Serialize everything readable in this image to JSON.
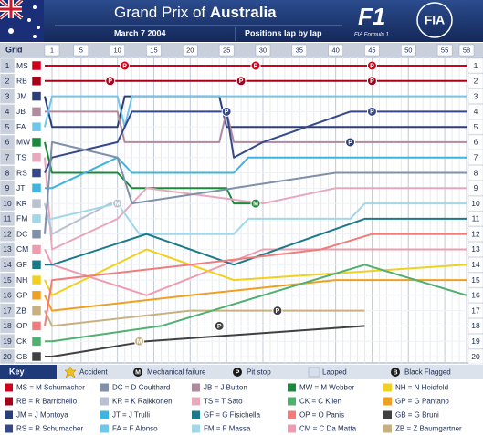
{
  "chart_data": {
    "type": "lap-chart",
    "title": "Grand Prix of",
    "title_emphasis": "Australia",
    "date": "March 7 2004",
    "subtitle": "Positions lap by lap",
    "logos": [
      "FIA Formula 1",
      "FIA"
    ],
    "x_label": "Grid",
    "xlim": [
      0,
      58
    ],
    "xticks": [
      1,
      5,
      10,
      15,
      20,
      25,
      30,
      35,
      40,
      45,
      50,
      55,
      58
    ],
    "ylim": [
      0.5,
      20.5
    ],
    "yticks": [
      1,
      2,
      3,
      4,
      5,
      6,
      7,
      8,
      9,
      10,
      11,
      12,
      13,
      14,
      15,
      16,
      17,
      18,
      19,
      20
    ],
    "series": [
      {
        "name": "MS",
        "color": "#d0021b",
        "x": [
          0,
          58
        ],
        "values": [
          1,
          1
        ]
      },
      {
        "name": "RB",
        "color": "#a80018",
        "x": [
          0,
          58
        ],
        "values": [
          2,
          2
        ]
      },
      {
        "name": "JM",
        "color": "#2a3f7a",
        "x": [
          0,
          1,
          10,
          11,
          24,
          25,
          58
        ],
        "values": [
          3,
          5,
          5,
          3,
          3,
          5,
          5
        ]
      },
      {
        "name": "JB",
        "color": "#b08a9e",
        "x": [
          0,
          1,
          10,
          11,
          24,
          25,
          26,
          58
        ],
        "values": [
          4,
          4,
          4,
          6,
          6,
          4,
          6,
          6
        ]
      },
      {
        "name": "FA",
        "color": "#6ec6ea",
        "x": [
          0,
          1,
          10,
          11,
          12,
          58
        ],
        "values": [
          5,
          3,
          3,
          5,
          3,
          3
        ]
      },
      {
        "name": "MW",
        "color": "#1a8a3a",
        "x": [
          0,
          1,
          10,
          12,
          25,
          26,
          29
        ],
        "values": [
          6,
          8,
          8,
          9,
          9,
          10,
          10
        ]
      },
      {
        "name": "TS",
        "color": "#e8a8bc",
        "x": [
          0,
          1,
          10,
          14,
          30,
          40,
          58
        ],
        "values": [
          7,
          13,
          11,
          9,
          10,
          9,
          9
        ]
      },
      {
        "name": "RS",
        "color": "#34488a",
        "x": [
          0,
          1,
          10,
          12,
          25,
          26,
          30,
          42,
          58
        ],
        "values": [
          8,
          7,
          6,
          4,
          4,
          7,
          6,
          4,
          4
        ]
      },
      {
        "name": "JT",
        "color": "#3fb4de",
        "x": [
          0,
          1,
          10,
          12,
          26,
          28,
          58
        ],
        "values": [
          9,
          9,
          7,
          8,
          8,
          7,
          7
        ]
      },
      {
        "name": "KR",
        "color": "#b8c0d2",
        "x": [
          0,
          1,
          9,
          10
        ],
        "values": [
          10,
          12,
          10,
          10
        ]
      },
      {
        "name": "FM",
        "color": "#a0d8ea",
        "x": [
          0,
          1,
          10,
          13,
          26,
          28,
          42,
          44,
          58
        ],
        "values": [
          11,
          11,
          10,
          12,
          12,
          11,
          11,
          10,
          10
        ]
      },
      {
        "name": "DC",
        "color": "#8090aa",
        "x": [
          0,
          1,
          10,
          12,
          26,
          40,
          58
        ],
        "values": [
          12,
          6,
          7,
          10,
          9,
          8,
          8
        ]
      },
      {
        "name": "CM",
        "color": "#f09cb0",
        "x": [
          0,
          1,
          14,
          30,
          58
        ],
        "values": [
          13,
          14,
          16,
          13,
          13
        ]
      },
      {
        "name": "GF",
        "color": "#1a7a8a",
        "x": [
          0,
          1,
          14,
          26,
          44,
          58
        ],
        "values": [
          14,
          14,
          12,
          14,
          11,
          11
        ]
      },
      {
        "name": "NH",
        "color": "#f0d020",
        "x": [
          0,
          1,
          14,
          26,
          58
        ],
        "values": [
          15,
          16,
          13,
          15,
          14
        ]
      },
      {
        "name": "GP",
        "color": "#f0a020",
        "x": [
          0,
          1,
          20,
          40,
          58
        ],
        "values": [
          16,
          17,
          16,
          15,
          15
        ]
      },
      {
        "name": "ZB",
        "color": "#c8b080",
        "x": [
          0,
          1,
          20,
          44
        ],
        "values": [
          17,
          18,
          17,
          17
        ]
      },
      {
        "name": "OP",
        "color": "#f07c7c",
        "x": [
          0,
          1,
          20,
          38,
          45,
          58
        ],
        "values": [
          18,
          15,
          14,
          13,
          12,
          12
        ]
      },
      {
        "name": "CK",
        "color": "#50b070",
        "x": [
          0,
          1,
          16,
          30,
          44,
          58
        ],
        "values": [
          19,
          19,
          18,
          16,
          14,
          16
        ]
      },
      {
        "name": "GB",
        "color": "#404040",
        "x": [
          0,
          1,
          14,
          44
        ],
        "values": [
          20,
          20,
          19,
          18
        ]
      }
    ],
    "events": [
      {
        "lap": 11,
        "position": 1,
        "label": "P",
        "color": "#d0021b"
      },
      {
        "lap": 29,
        "position": 1,
        "label": "P",
        "color": "#d0021b"
      },
      {
        "lap": 45,
        "position": 1,
        "label": "P",
        "color": "#d0021b"
      },
      {
        "lap": 9,
        "position": 2,
        "label": "P",
        "color": "#a80018"
      },
      {
        "lap": 27,
        "position": 2,
        "label": "P",
        "color": "#a80018"
      },
      {
        "lap": 45,
        "position": 2,
        "label": "P",
        "color": "#a80018"
      },
      {
        "lap": 25,
        "position": 4,
        "label": "P",
        "color": "#34488a"
      },
      {
        "lap": 45,
        "position": 4,
        "label": "P",
        "color": "#34488a"
      },
      {
        "lap": 42,
        "position": 6,
        "label": "P",
        "color": "#2a3f7a"
      },
      {
        "lap": 10,
        "position": 10,
        "label": "M",
        "color": "#b8c0d2"
      },
      {
        "lap": 29,
        "position": 10,
        "label": "M",
        "color": "#1a8a3a"
      },
      {
        "lap": 24,
        "position": 18,
        "label": "P",
        "color": "#404040"
      },
      {
        "lap": 32,
        "position": 17,
        "label": "P",
        "color": "#404040"
      },
      {
        "lap": 13,
        "position": 19,
        "label": "M",
        "color": "#c8b080"
      }
    ],
    "key_title": "Key",
    "legend_items": [
      {
        "label": "Accident"
      },
      {
        "symbol": "M",
        "label": "Mechanical failure"
      },
      {
        "symbol": "P",
        "label": "Pit stop"
      },
      {
        "label": "Lapped"
      },
      {
        "symbol": "B",
        "label": "Black Flagged"
      }
    ],
    "key": [
      {
        "label": "MS = M Schumacher",
        "color": "#d0021b"
      },
      {
        "label": "DC = D Coulthard",
        "color": "#8090aa"
      },
      {
        "label": "JB = J Button",
        "color": "#b08a9e"
      },
      {
        "label": "MW = M Webber",
        "color": "#1a8a3a"
      },
      {
        "label": "NH = N Heidfeld",
        "color": "#f0d020"
      },
      {
        "label": "RB = R Barrichello",
        "color": "#a80018"
      },
      {
        "label": "KR = K Raikkonen",
        "color": "#b8c0d2"
      },
      {
        "label": "TS = T Sato",
        "color": "#e8a8bc"
      },
      {
        "label": "CK = C Klien",
        "color": "#50b070"
      },
      {
        "label": "GP = G Pantano",
        "color": "#f0a020"
      },
      {
        "label": "JM = J Montoya",
        "color": "#2a3f7a"
      },
      {
        "label": "JT = J Trulli",
        "color": "#3fb4de"
      },
      {
        "label": "GF = G Fisichella",
        "color": "#1a7a8a"
      },
      {
        "label": "OP = O Panis",
        "color": "#f07c7c"
      },
      {
        "label": "GB = G Bruni",
        "color": "#404040"
      },
      {
        "label": "RS = R Schumacher",
        "color": "#34488a"
      },
      {
        "label": "FA = F Alonso",
        "color": "#6ec6ea"
      },
      {
        "label": "FM = F Massa",
        "color": "#a0d8ea"
      },
      {
        "label": "CM = C Da Matta",
        "color": "#f09cb0"
      },
      {
        "label": "ZB = Z Baumgartner",
        "color": "#c8b080"
      }
    ]
  }
}
